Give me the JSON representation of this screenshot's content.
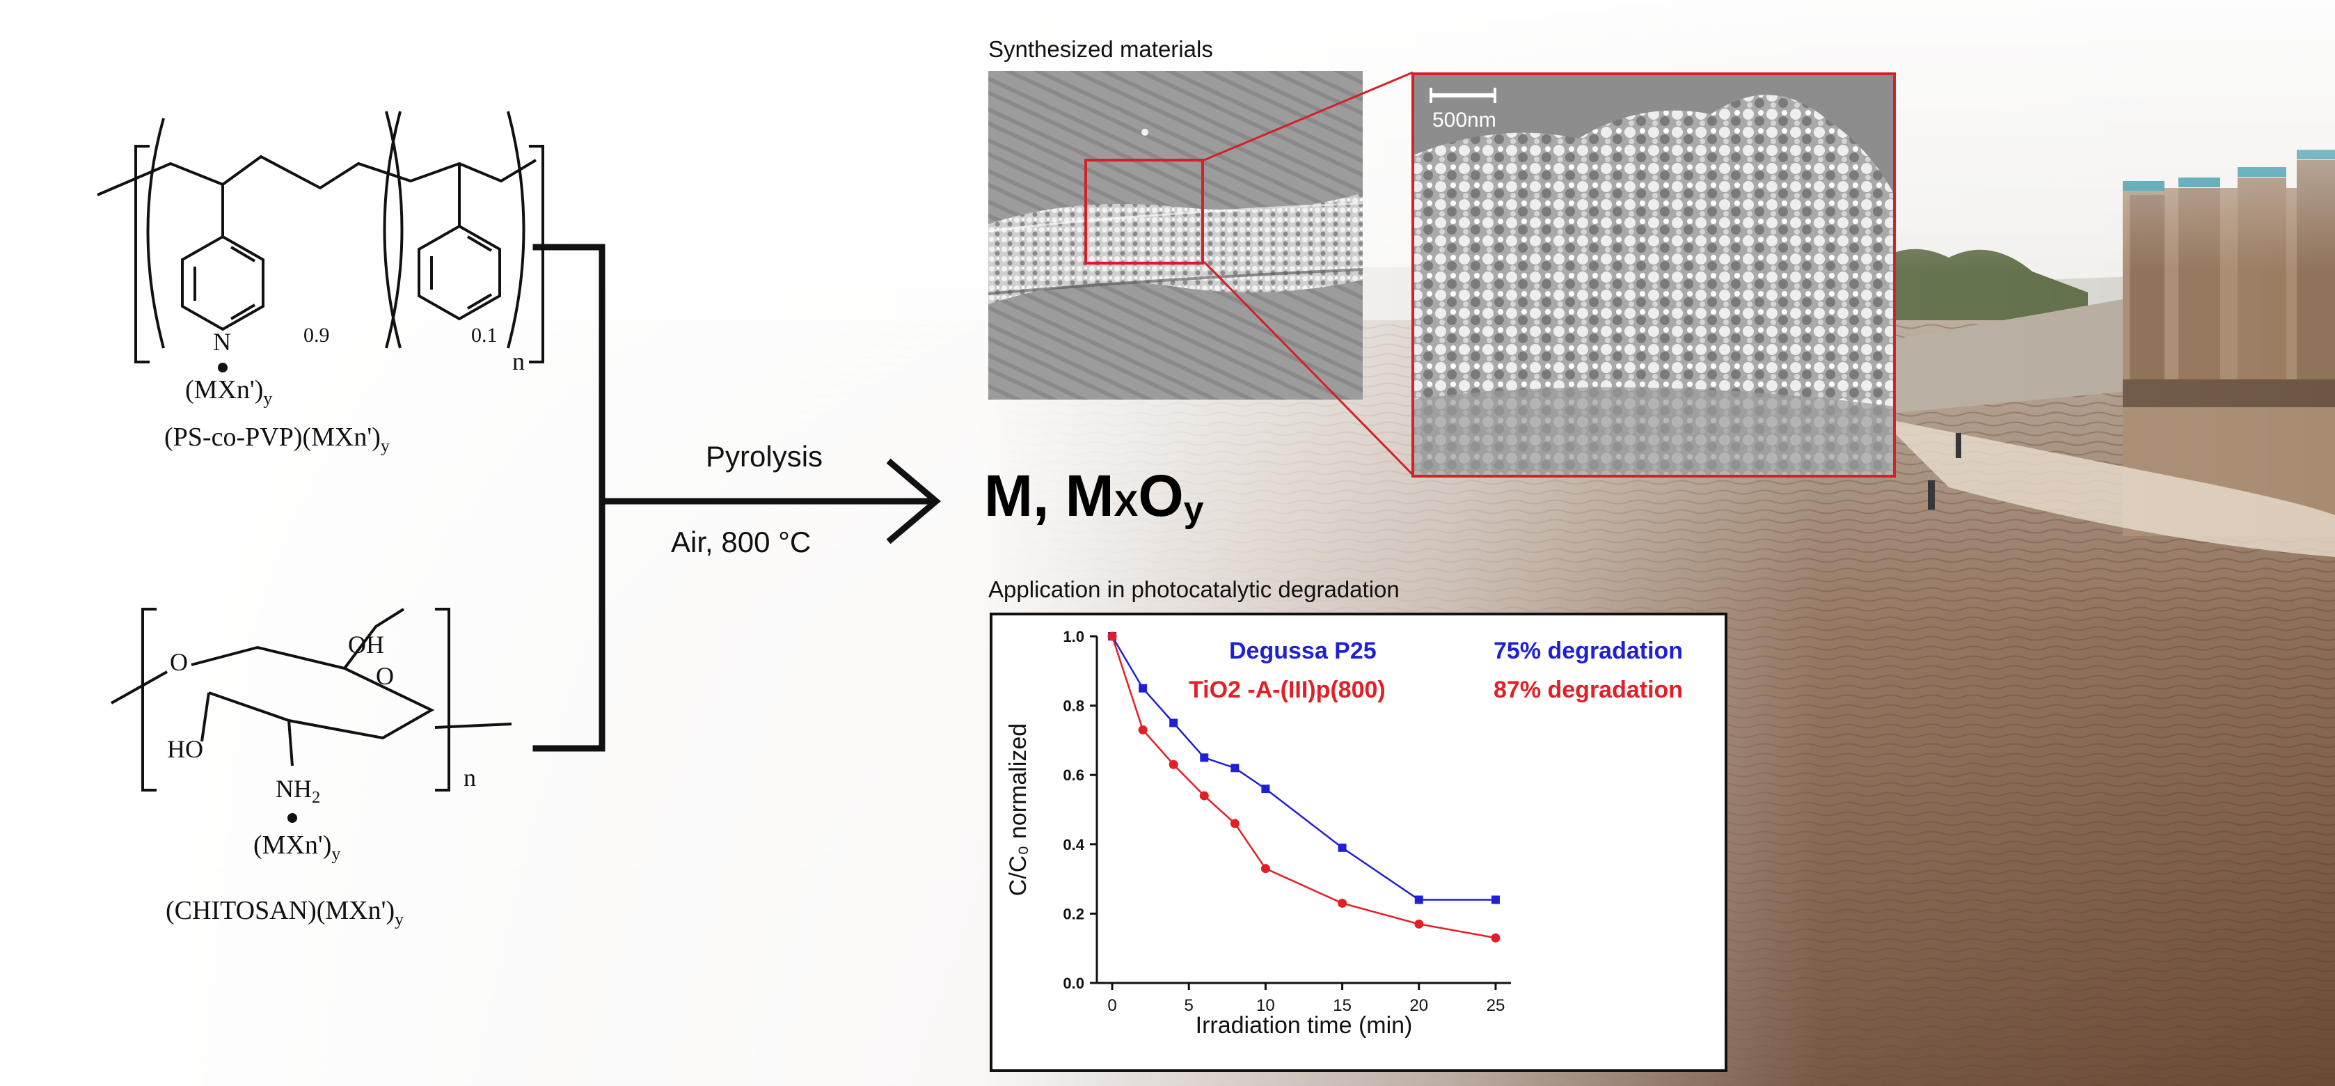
{
  "domain": "Diagram",
  "polymer1": {
    "name": "(PS-co-PVP)(MXn')",
    "name_sub": "y",
    "complex": "(MXn')",
    "complex_sub": "y",
    "atom_n": "N",
    "sub1": "0.9",
    "sub2": "0.1",
    "repeat": "n"
  },
  "polymer2": {
    "name": "(CHITOSAN)(MXn')",
    "name_sub": "y",
    "complex": "(MXn')",
    "complex_sub": "y",
    "oh": "OH",
    "ho": "HO",
    "o_ring": "O",
    "o_link": "O",
    "nh2": "NH",
    "nh2_sub": "2",
    "repeat": "n"
  },
  "process": {
    "step": "Pyrolysis",
    "conditions": "Air, 800 °C"
  },
  "product": {
    "text": "M, M",
    "x_sub": "X",
    "o": "O",
    "y_sub": "y"
  },
  "sem": {
    "title": "Synthesized materials",
    "scale_label": "500nm"
  },
  "chart_title": "Application in photocatalytic degradation",
  "colors": {
    "series_blue": "#1f1fd6",
    "series_red": "#e31e24",
    "inset_frame": "#d42027"
  },
  "chart_data": {
    "type": "line",
    "xlabel": "Irradiation time (min)",
    "ylabel": "C/C₀ normalized",
    "xlim": [
      -1,
      26
    ],
    "ylim": [
      0.0,
      1.0
    ],
    "xticks": [
      0,
      5,
      10,
      15,
      20,
      25
    ],
    "yticks": [
      0.0,
      0.2,
      0.4,
      0.6,
      0.8,
      1.0
    ],
    "xtick_labels": [
      "0",
      "5",
      "10",
      "15",
      "20",
      "25"
    ],
    "ytick_labels": [
      "0.0",
      "0.2",
      "0.4",
      "0.6",
      "0.8",
      "1.0"
    ],
    "legend_placement": "top-right",
    "series": [
      {
        "name": "Degussa P25",
        "note": "75% degradation",
        "color": "#1f1fd6",
        "marker": "square",
        "x": [
          0,
          2,
          4,
          6,
          8,
          10,
          15,
          20,
          25
        ],
        "y": [
          1.0,
          0.85,
          0.75,
          0.65,
          0.62,
          0.56,
          0.39,
          0.24,
          0.24
        ]
      },
      {
        "name": "TiO2 -A-(III)p(800)",
        "note": "87% degradation",
        "color": "#e31e24",
        "marker": "circle",
        "x": [
          0,
          2,
          4,
          6,
          8,
          10,
          15,
          20,
          25
        ],
        "y": [
          1.0,
          0.73,
          0.63,
          0.54,
          0.46,
          0.33,
          0.23,
          0.17,
          0.13
        ]
      }
    ]
  }
}
